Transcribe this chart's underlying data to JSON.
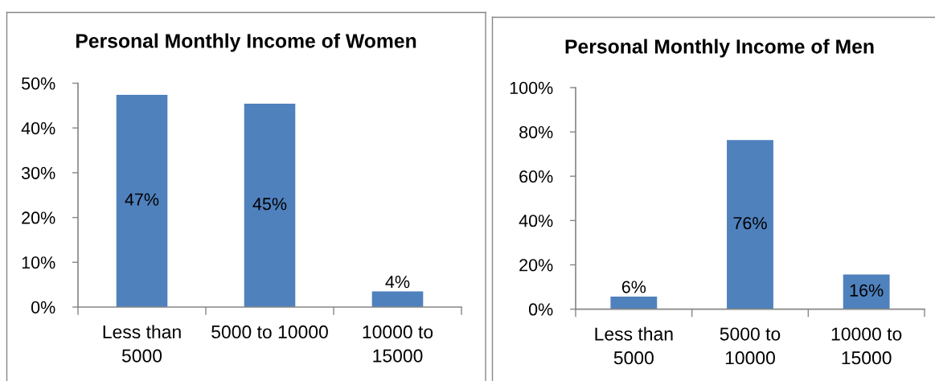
{
  "chart_data": [
    {
      "type": "bar",
      "title": "Personal Monthly Income of Women",
      "categories": [
        "Less than\n5000",
        "5000 to 10000",
        "10000 to\n15000"
      ],
      "values": [
        47.4,
        45.4,
        3.5
      ],
      "value_labels": [
        "47%",
        "45%",
        "4%"
      ],
      "color": "#4f81bd",
      "ylim": [
        0,
        50
      ],
      "yticks": [
        {
          "value": 0,
          "label": "0%"
        },
        {
          "value": 10,
          "label": "10%"
        },
        {
          "value": 20,
          "label": "20%"
        },
        {
          "value": 30,
          "label": "30%"
        },
        {
          "value": 40,
          "label": "40%"
        },
        {
          "value": 50,
          "label": "50%"
        }
      ]
    },
    {
      "type": "bar",
      "title": "Personal Monthly Income of Men",
      "categories": [
        "Less than\n5000",
        "5000 to\n10000",
        "10000 to\n15000"
      ],
      "values": [
        5.7,
        76.3,
        15.6
      ],
      "value_labels": [
        "6%",
        "76%",
        "16%"
      ],
      "color": "#4f81bd",
      "ylim": [
        0,
        100
      ],
      "yticks": [
        {
          "value": 0,
          "label": "0%"
        },
        {
          "value": 20,
          "label": "20%"
        },
        {
          "value": 40,
          "label": "40%"
        },
        {
          "value": 60,
          "label": "60%"
        },
        {
          "value": 80,
          "label": "80%"
        },
        {
          "value": 100,
          "label": "100%"
        }
      ]
    }
  ]
}
